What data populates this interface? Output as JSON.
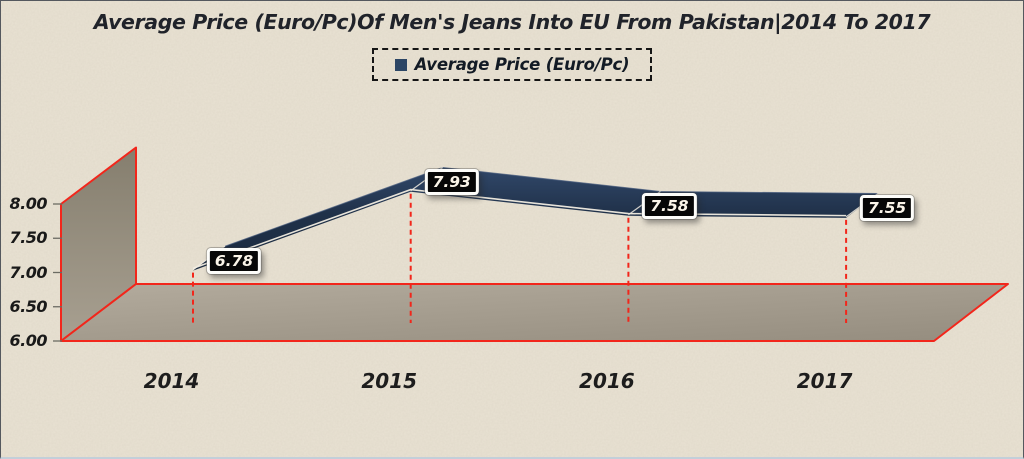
{
  "title": "Average Price (Euro/Pc)Of Men's Jeans Into EU From Pakistan|2014 To 2017",
  "legend": {
    "label": "Average Price (Euro/Pc)",
    "marker_color": "#2c4665"
  },
  "chart_data": {
    "type": "line",
    "style": "3d-ribbon",
    "title": "Average Price (Euro/Pc)Of Men's Jeans Into EU From Pakistan|2014 To 2017",
    "categories": [
      "2014",
      "2015",
      "2016",
      "2017"
    ],
    "series": [
      {
        "name": "Average Price (Euro/Pc)",
        "values": [
          6.78,
          7.93,
          7.58,
          7.55
        ]
      }
    ],
    "data_labels": [
      "6.78",
      "7.93",
      "7.58",
      "7.55"
    ],
    "y_ticks": [
      6.0,
      6.5,
      7.0,
      7.5,
      8.0
    ],
    "y_tick_labels": [
      "6.00",
      "6.50",
      "7.00",
      "7.50",
      "8.00"
    ],
    "ylim": [
      6.0,
      8.0
    ],
    "xlabel": "",
    "ylabel": "",
    "legend_position": "top",
    "grid": false,
    "colors": {
      "background": "#e9e2d3",
      "ribbon": "#203149",
      "ribbon_light": "#31486a",
      "ribbon_edge_highlight": "#f2ede2",
      "frame_red": "#f2261b",
      "wall_dark": "#857e6e",
      "wall_light": "#a8a091",
      "floor_light": "#b3ab9d",
      "floor_dark": "#968e80",
      "label_bg": "#070707",
      "label_text": "#fbf5e9"
    }
  }
}
